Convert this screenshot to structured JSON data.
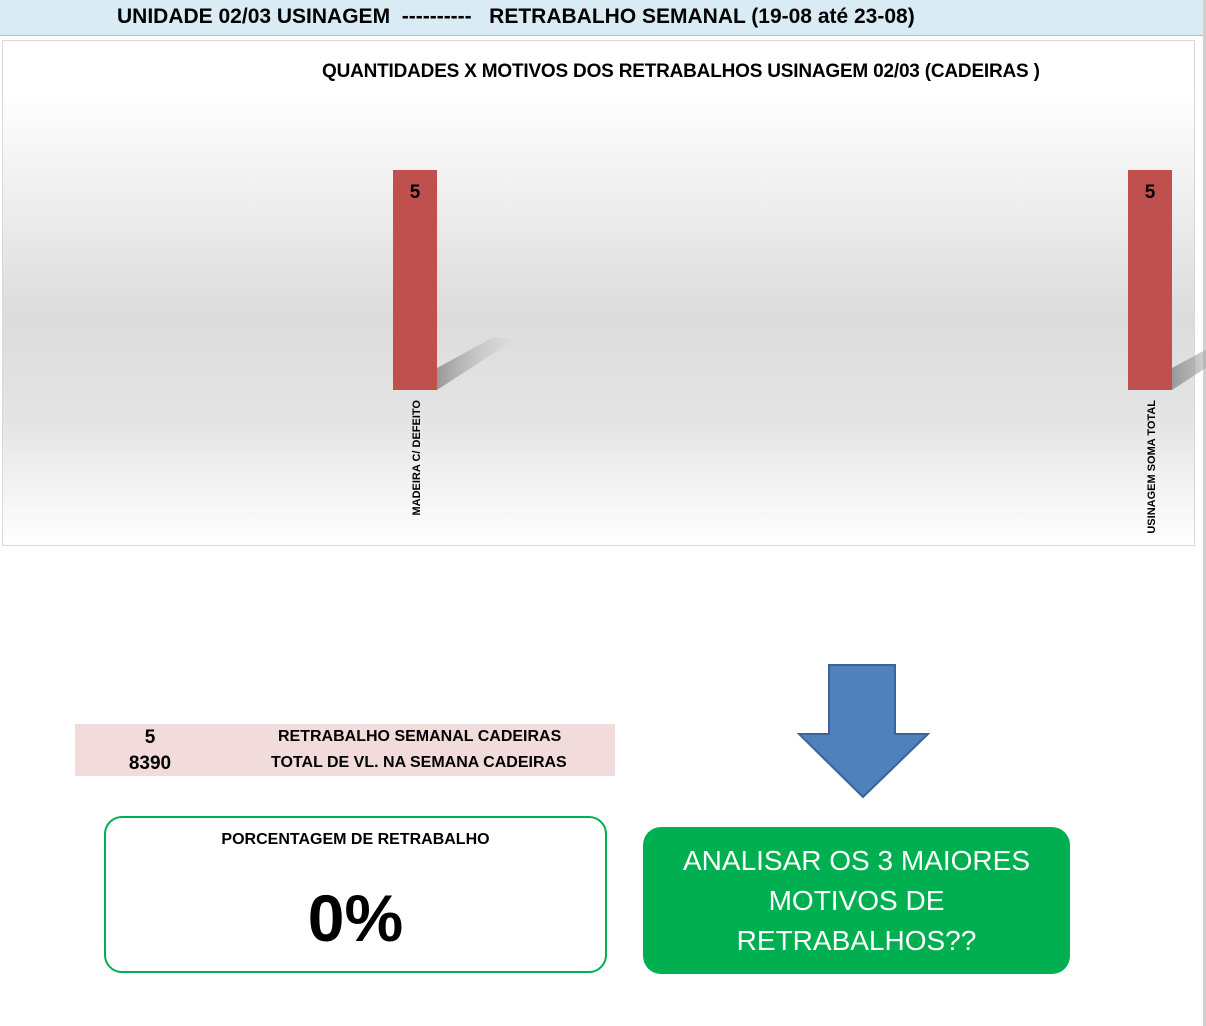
{
  "header": {
    "title": "UNIDADE 02/03 USINAGEM  ----------   RETRABALHO SEMANAL (19-08 até 23-08)"
  },
  "chart_data": {
    "type": "bar",
    "title": "QUANTIDADES X MOTIVOS DOS RETRABALHOS USINAGEM 02/03 (CADEIRAS )",
    "categories": [
      "MADEIRA C/ DEFEITO",
      "USINAGEM SOMA TOTAL"
    ],
    "values": [
      5,
      5
    ],
    "data_labels": [
      "5",
      "5"
    ],
    "bar_color": "#c0504d",
    "grid": false,
    "legend": "none"
  },
  "summary_table": {
    "rows": [
      {
        "value": "5",
        "label": "RETRABALHO SEMANAL CADEIRAS"
      },
      {
        "value": "8390",
        "label": "TOTAL DE VL. NA SEMANA CADEIRAS"
      }
    ]
  },
  "percentage_box": {
    "label": "PORCENTAGEM DE RETRABALHO",
    "value": "0%"
  },
  "action_box": {
    "line1": "ANALISAR OS 3 MAIORES",
    "line2": "MOTIVOS DE",
    "line3": "RETRABALHOS??"
  },
  "colors": {
    "header_bg": "#d9ecf6",
    "bar": "#c0504d",
    "arrow": "#4f81bd",
    "box_green": "#00b050",
    "table_bg": "#f2dcdb"
  },
  "icons": {
    "arrow": "down-arrow-icon"
  }
}
